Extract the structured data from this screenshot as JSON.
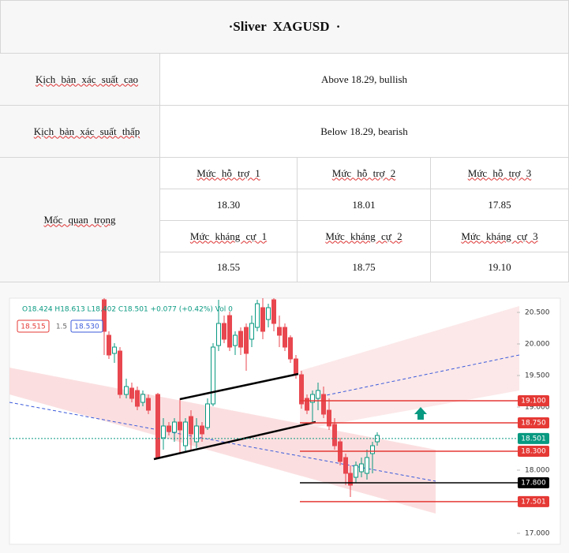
{
  "title": "·Sliver  XAGUSD ·",
  "scenarios": [
    {
      "label": "Kịch bản xác suất cao",
      "value": "Above 18.29, bullish"
    },
    {
      "label": "Kịch bản xác suất thấp",
      "value": "Below 18.29, bearish"
    }
  ],
  "key_levels": {
    "label": "Mốc quan trọng",
    "support": {
      "headers": [
        "Mức hỗ trợ 1",
        "Mức hỗ trợ 2",
        "Mức hỗ trợ 3"
      ],
      "values": [
        "18.30",
        "18.01",
        "17.85"
      ]
    },
    "resistance": {
      "headers": [
        "Mức kháng cự 1",
        "Mức kháng cự 2",
        "Mức kháng cự 3"
      ],
      "values": [
        "18.55",
        "18.75",
        "19.10"
      ]
    }
  },
  "chart": {
    "ohlc": "O18.424 H18.613 L18.402 C18.501 +0.077 (+0.42%) Vol 0",
    "price_boxes": [
      "18.515",
      "1.5",
      "18.530"
    ],
    "ylim": [
      16.8,
      20.7
    ],
    "yticks": [
      {
        "value": 20.5,
        "label": "20.500"
      },
      {
        "value": 20,
        "label": "20.000"
      },
      {
        "value": 19.5,
        "label": "19.500"
      },
      {
        "value": 19,
        "label": "19.000"
      },
      {
        "value": 18,
        "label": "18.000"
      },
      {
        "value": 17,
        "label": "17.000"
      }
    ],
    "levels": [
      {
        "value": 19.1,
        "label": "19.100",
        "color": "#e53935"
      },
      {
        "value": 18.75,
        "label": "18.750",
        "color": "#e53935"
      },
      {
        "value": 18.501,
        "label": "18.501",
        "color": "#089981"
      },
      {
        "value": 18.3,
        "label": "18.300",
        "color": "#e53935"
      },
      {
        "value": 17.8,
        "label": "17.800",
        "color": "#000000"
      },
      {
        "value": 17.501,
        "label": "17.501",
        "color": "#e53935"
      }
    ]
  }
}
